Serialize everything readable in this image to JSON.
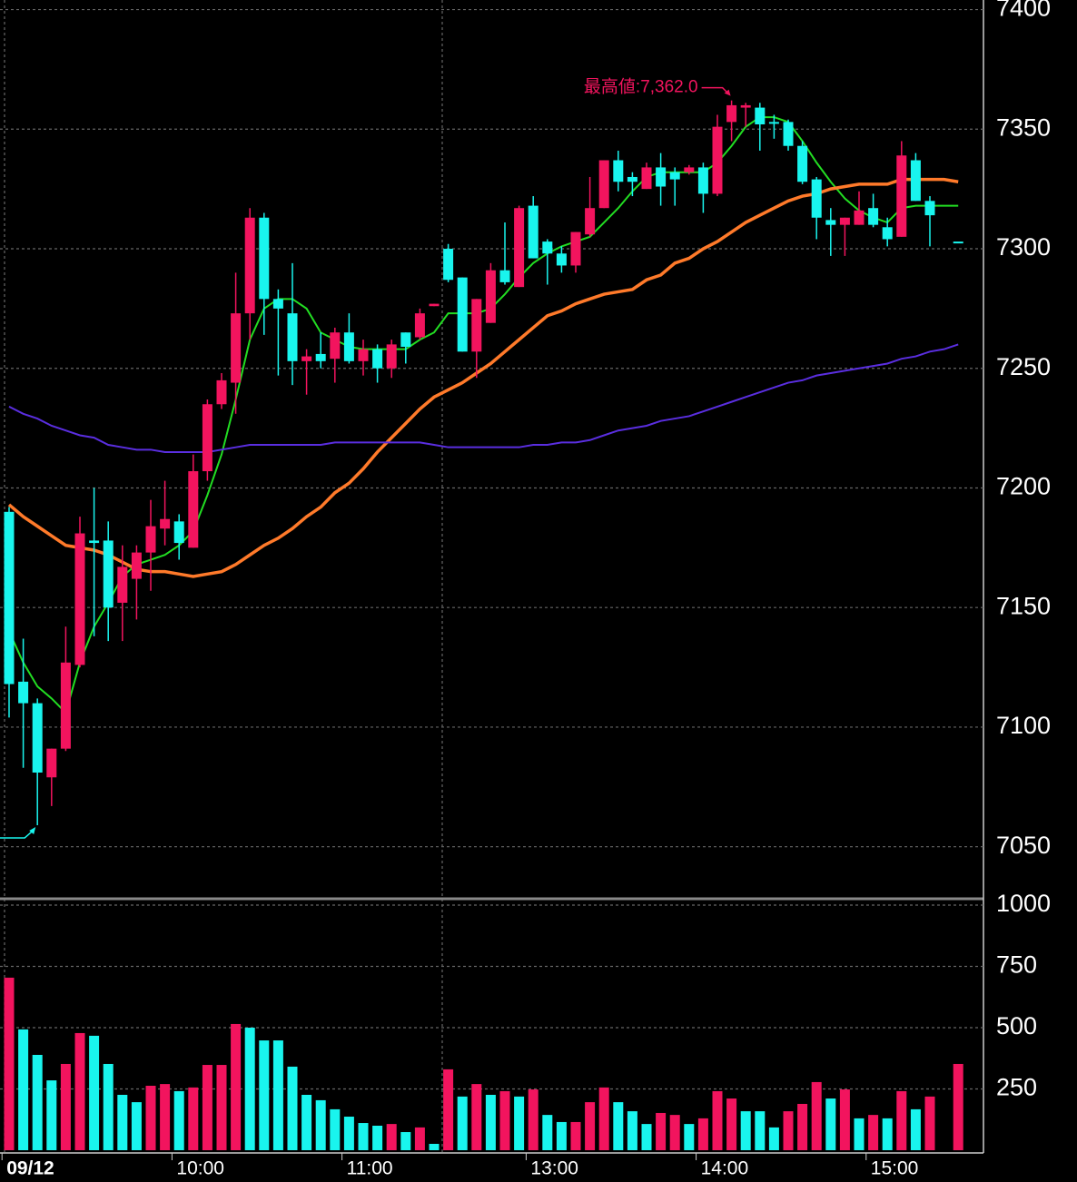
{
  "chart_data": {
    "type": "candlestick",
    "categories": [
      "09/12",
      null,
      null,
      null,
      null,
      null,
      null,
      null,
      null,
      null,
      null,
      null,
      "10:00",
      null,
      null,
      null,
      null,
      null,
      null,
      null,
      null,
      null,
      null,
      null,
      "11:00",
      null,
      null,
      null,
      null,
      null,
      null,
      null,
      null,
      null,
      null,
      null,
      null,
      "13:00",
      null,
      null,
      null,
      null,
      null,
      null,
      null,
      null,
      null,
      null,
      null,
      "14:00",
      null,
      null,
      null,
      null,
      null,
      null,
      null,
      null,
      null,
      null,
      null,
      "15:00",
      null,
      null,
      null,
      null,
      null,
      null
    ],
    "open": [
      7190,
      7119,
      7110,
      7079,
      7091,
      7126,
      7178,
      7178,
      7152,
      7162,
      7173,
      7183,
      7186,
      7175,
      7207,
      7235,
      7244,
      7273,
      7313,
      7279,
      7273,
      7253,
      7256,
      7254,
      7265,
      7253,
      7258,
      7250,
      7265,
      7263,
      7276,
      7300,
      7288,
      7257,
      7269,
      7291,
      7284,
      7318,
      7303,
      7298,
      7293,
      7306,
      7317,
      7337,
      7330,
      7325,
      7334,
      7332,
      7332,
      7334,
      7323,
      7353,
      7359,
      7359,
      7353,
      7353,
      7343,
      7329,
      7312,
      7310,
      7310,
      7317,
      7309,
      7305,
      7337,
      7320,
      null,
      7303
    ],
    "high": [
      7192,
      7137,
      7112,
      7091,
      7142,
      7188,
      7200,
      7186,
      7176,
      7176,
      7195,
      7203,
      7189,
      7214,
      7237,
      7248,
      7290,
      7317,
      7315,
      7283,
      7294,
      7258,
      7265,
      7267,
      7273,
      7262,
      7260,
      7262,
      7265,
      7275,
      7277,
      7302,
      7288,
      7279,
      7294,
      7311,
      7318,
      7322,
      7304,
      7301,
      7307,
      7330,
      7337,
      7341,
      7332,
      7336,
      7340,
      7334,
      7335,
      7336,
      7356,
      7362,
      7361,
      7361,
      7356,
      7354,
      7345,
      7330,
      7317,
      7313,
      7324,
      7323,
      7313,
      7345,
      7340,
      7322,
      null,
      7303
    ],
    "low": [
      7104,
      7083,
      7059,
      7067,
      7090,
      7125,
      7138,
      7136,
      7136,
      7145,
      7157,
      7176,
      7170,
      7175,
      7203,
      7233,
      7231,
      7262,
      7264,
      7247,
      7243,
      7239,
      7250,
      7244,
      7252,
      7247,
      7244,
      7246,
      7252,
      7262,
      7276,
      7286,
      7257,
      7246,
      7269,
      7285,
      7284,
      7296,
      7285,
      7290,
      7290,
      7305,
      7317,
      7324,
      7322,
      7325,
      7318,
      7318,
      7331,
      7315,
      7322,
      7345,
      7351,
      7341,
      7346,
      7341,
      7327,
      7304,
      7297,
      7297,
      7310,
      7309,
      7301,
      7305,
      7320,
      7301,
      null,
      7303
    ],
    "close": [
      7118,
      7110,
      7081,
      7091,
      7127,
      7181,
      7177,
      7150,
      7167,
      7173,
      7184,
      7187,
      7177,
      7207,
      7235,
      7245,
      7273,
      7313,
      7279,
      7275,
      7253,
      7255,
      7253,
      7265,
      7253,
      7258,
      7250,
      7260,
      7259,
      7273,
      7277,
      7287,
      7257,
      7279,
      7291,
      7286,
      7317,
      7296,
      7298,
      7293,
      7307,
      7317,
      7337,
      7328,
      7328,
      7334,
      7326,
      7329,
      7334,
      7323,
      7351,
      7360,
      7360,
      7352,
      7353,
      7343,
      7328,
      7313,
      7310,
      7313,
      7316,
      7310,
      7304,
      7339,
      7320,
      7314,
      null,
      7303
    ],
    "up_color": "#f2145e",
    "down_color": "#19f5ee",
    "ma_lines": [
      {
        "color": "#22dd22",
        "values": [
          7140,
          7127,
          7117,
          7112,
          7106,
          7127,
          7142,
          7152,
          7163,
          7168,
          7170,
          7172,
          7176,
          7182,
          7197,
          7214,
          7237,
          7262,
          7275,
          7279,
          7279,
          7275,
          7265,
          7262,
          7259,
          7258,
          7258,
          7258,
          7258,
          7262,
          7265,
          7273,
          7273,
          7273,
          7275,
          7281,
          7288,
          7294,
          7298,
          7301,
          7303,
          7305,
          7311,
          7317,
          7324,
          7330,
          7332,
          7332,
          7332,
          7332,
          7336,
          7343,
          7351,
          7355,
          7355,
          7353,
          7345,
          7336,
          7328,
          7321,
          7316,
          7313,
          7311,
          7317,
          7318,
          7318,
          7318,
          7318
        ]
      },
      {
        "color": "#ff7a2a",
        "values": [
          7193,
          7188,
          7184,
          7180,
          7176,
          7175,
          7174,
          7172,
          7169,
          7166,
          7165,
          7165,
          7164,
          7163,
          7164,
          7165,
          7168,
          7172,
          7176,
          7179,
          7183,
          7188,
          7192,
          7198,
          7202,
          7208,
          7215,
          7221,
          7227,
          7233,
          7238,
          7241,
          7244,
          7248,
          7252,
          7257,
          7262,
          7267,
          7272,
          7274,
          7277,
          7279,
          7281,
          7282,
          7283,
          7287,
          7289,
          7294,
          7296,
          7300,
          7303,
          7307,
          7311,
          7314,
          7317,
          7320,
          7322,
          7323,
          7325,
          7326,
          7327,
          7327,
          7327,
          7329,
          7329,
          7329,
          7329,
          7328
        ]
      },
      {
        "color": "#5a2ee0",
        "values": [
          7234,
          7231,
          7229,
          7226,
          7224,
          7222,
          7221,
          7218,
          7217,
          7216,
          7216,
          7215,
          7215,
          7215,
          7215,
          7216,
          7217,
          7218,
          7218,
          7218,
          7218,
          7218,
          7218,
          7219,
          7219,
          7219,
          7219,
          7219,
          7219,
          7219,
          7218,
          7217,
          7217,
          7217,
          7217,
          7217,
          7217,
          7218,
          7218,
          7219,
          7219,
          7220,
          7222,
          7224,
          7225,
          7226,
          7228,
          7229,
          7230,
          7232,
          7234,
          7236,
          7238,
          7240,
          7242,
          7244,
          7245,
          7247,
          7248,
          7249,
          7250,
          7251,
          7252,
          7254,
          7255,
          7257,
          7258,
          7260
        ]
      }
    ],
    "ylim": [
      7029,
      7404
    ],
    "yticks": [
      7050,
      7100,
      7150,
      7200,
      7250,
      7300,
      7350,
      7400
    ],
    "grid": true,
    "annotation": "最高値:7,362.0",
    "volume": {
      "type": "bar",
      "values": [
        704,
        493,
        389,
        285,
        352,
        478,
        467,
        352,
        226,
        196,
        263,
        270,
        241,
        256,
        348,
        348,
        515,
        500,
        448,
        448,
        341,
        226,
        204,
        167,
        137,
        111,
        100,
        107,
        74,
        93,
        26,
        330,
        219,
        270,
        226,
        241,
        219,
        248,
        144,
        115,
        115,
        196,
        256,
        196,
        159,
        107,
        152,
        144,
        107,
        130,
        241,
        211,
        159,
        159,
        93,
        159,
        189,
        278,
        211,
        248,
        130,
        144,
        130,
        241,
        167,
        219,
        null,
        352
      ],
      "colors": [
        "#f2145e",
        "#19f5ee",
        "#19f5ee",
        "#19f5ee",
        "#f2145e",
        "#f2145e",
        "#19f5ee",
        "#19f5ee",
        "#19f5ee",
        "#19f5ee",
        "#f2145e",
        "#f2145e",
        "#19f5ee",
        "#f2145e",
        "#f2145e",
        "#f2145e",
        "#f2145e",
        "#19f5ee",
        "#19f5ee",
        "#19f5ee",
        "#19f5ee",
        "#19f5ee",
        "#19f5ee",
        "#19f5ee",
        "#19f5ee",
        "#19f5ee",
        "#19f5ee",
        "#f2145e",
        "#19f5ee",
        "#f2145e",
        "#19f5ee",
        "#f2145e",
        "#19f5ee",
        "#f2145e",
        "#19f5ee",
        "#f2145e",
        "#19f5ee",
        "#f2145e",
        "#19f5ee",
        "#19f5ee",
        "#f2145e",
        "#f2145e",
        "#f2145e",
        "#19f5ee",
        "#19f5ee",
        "#19f5ee",
        "#f2145e",
        "#f2145e",
        "#19f5ee",
        "#f2145e",
        "#f2145e",
        "#f2145e",
        "#19f5ee",
        "#19f5ee",
        "#19f5ee",
        "#f2145e",
        "#f2145e",
        "#f2145e",
        "#19f5ee",
        "#f2145e",
        "#19f5ee",
        "#f2145e",
        "#19f5ee",
        "#f2145e",
        "#19f5ee",
        "#f2145e",
        null,
        "#f2145e"
      ],
      "ylim": [
        0,
        1026
      ],
      "yticks": [
        250,
        500,
        750,
        1000
      ]
    }
  }
}
